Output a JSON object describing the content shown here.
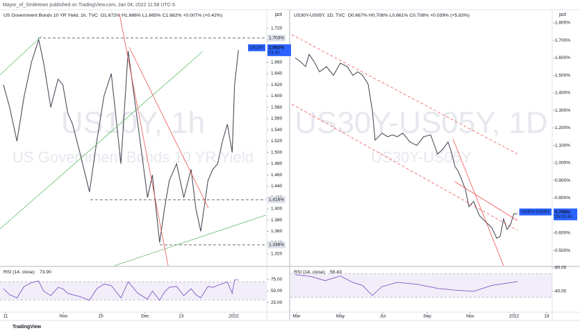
{
  "header": "Mayor_of_Smiletown published on TradingView.com, Jan 04, 2022 11:58 UTC-5",
  "footer": "TradingView",
  "chart_data": [
    {
      "type": "line",
      "title": "US Government Bonds 10 YR Yield, 1h, TVC",
      "ohlc": "O1.672% H1.686% L1.665% C1.682% +0.007% (+0.42%)",
      "watermark": [
        "US10Y, 1h",
        "US Government Bonds 10 YR Yield"
      ],
      "axis_unit": "pct",
      "x": [
        1.4,
        4,
        7,
        10,
        13,
        16,
        18,
        21,
        24,
        26,
        28,
        30,
        33,
        37,
        40,
        43,
        46,
        50,
        53,
        57,
        61,
        63,
        66,
        68,
        70,
        73,
        76,
        79,
        81,
        83,
        86,
        88,
        90,
        92,
        94,
        96,
        97,
        98.6
      ],
      "series": [
        {
          "name": "US10Y",
          "color": "#4a4e5a",
          "values": [
            1.62,
            1.58,
            1.52,
            1.6,
            1.66,
            1.7,
            1.66,
            1.58,
            1.63,
            1.62,
            1.57,
            1.55,
            1.5,
            1.43,
            1.52,
            1.6,
            1.64,
            1.48,
            1.68,
            1.55,
            1.42,
            1.46,
            1.34,
            1.4,
            1.45,
            1.48,
            1.42,
            1.47,
            1.4,
            1.36,
            1.45,
            1.47,
            1.48,
            1.52,
            1.55,
            1.5,
            1.62,
            1.682
          ]
        }
      ],
      "last_price": {
        "value": 1.682,
        "label": "1.682%"
      },
      "countdown": "01:41",
      "levels": [
        {
          "value": 1.703,
          "label": "1.703%"
        },
        {
          "value": 1.416,
          "label": "1.416%"
        },
        {
          "value": 1.336,
          "label": "1.336%"
        }
      ],
      "xlim": [
        0,
        110
      ],
      "ylim": [
        1.299,
        1.752
      ],
      "xticks": [
        {
          "value": 2.3,
          "label": "11"
        },
        {
          "value": 26.3,
          "label": "Nov"
        },
        {
          "value": 41.7,
          "label": "15"
        },
        {
          "value": 60,
          "label": "Dec"
        },
        {
          "value": 74.9,
          "label": "13"
        },
        {
          "value": 96.6,
          "label": "2022"
        }
      ],
      "yticks": [
        {
          "value": 1.32,
          "label": "1.320"
        },
        {
          "value": 1.34,
          "label": "1.340"
        },
        {
          "value": 1.36,
          "label": "1.360"
        },
        {
          "value": 1.38,
          "label": "1.380"
        },
        {
          "value": 1.4,
          "label": "1.400"
        },
        {
          "value": 1.42,
          "label": "1.420"
        },
        {
          "value": 1.44,
          "label": "1.440"
        },
        {
          "value": 1.46,
          "label": "1.460"
        },
        {
          "value": 1.48,
          "label": "1.480"
        },
        {
          "value": 1.5,
          "label": "1.500"
        },
        {
          "value": 1.52,
          "label": "1.520"
        },
        {
          "value": 1.54,
          "label": "1.540"
        },
        {
          "value": 1.56,
          "label": "1.560"
        },
        {
          "value": 1.58,
          "label": "1.580"
        },
        {
          "value": 1.6,
          "label": "1.600"
        },
        {
          "value": 1.62,
          "label": "1.620"
        },
        {
          "value": 1.64,
          "label": "1.640"
        },
        {
          "value": 1.66,
          "label": "1.660"
        },
        {
          "value": 1.68,
          "label": "1.680"
        },
        {
          "value": 1.7,
          "label": "1.700"
        },
        {
          "value": 1.72,
          "label": "1.720"
        }
      ]
    },
    {
      "type": "line",
      "title": "RSI (14, close)",
      "last_value": {
        "value": 73.9,
        "label": "73.90"
      },
      "x": [
        1.4,
        4,
        7,
        10,
        13,
        16,
        18,
        21,
        24,
        26,
        28,
        30,
        33,
        37,
        40,
        43,
        46,
        50,
        53,
        57,
        61,
        63,
        66,
        68,
        70,
        73,
        76,
        79,
        81,
        83,
        86,
        88,
        90,
        92,
        94,
        96,
        97,
        98.6
      ],
      "series": [
        {
          "name": "RSI",
          "color": "#7e57c2",
          "values": [
            55,
            42,
            35,
            60,
            68,
            72,
            50,
            40,
            58,
            55,
            45,
            42,
            38,
            30,
            55,
            65,
            62,
            35,
            70,
            45,
            32,
            50,
            30,
            48,
            58,
            60,
            40,
            55,
            42,
            35,
            60,
            58,
            62,
            66,
            70,
            45,
            74,
            73.9
          ]
        }
      ],
      "band": [
        30,
        70
      ],
      "xlim": [
        0,
        110
      ],
      "ylim": [
        4,
        102
      ],
      "yticks": [
        {
          "value": 75,
          "label": "75.00"
        },
        {
          "value": 50,
          "label": "50.00"
        },
        {
          "value": 25,
          "label": "25.00"
        }
      ]
    },
    {
      "type": "line",
      "title": "US30Y-US05Y, 1D, TVC",
      "ohlc": "O0.667% H0.708% L0.661% C0.708% +0.039% (+5.83%)",
      "watermark": [
        "US30Y-US05Y, 1D",
        "US30Y-US05Y"
      ],
      "axis_unit": "pct",
      "x": [
        3.5,
        7,
        11,
        13.5,
        17,
        21,
        26,
        31,
        36,
        41,
        45,
        48.5,
        52,
        56,
        59,
        61,
        66,
        70,
        73.5,
        77,
        81,
        86,
        91,
        96,
        101,
        106,
        110,
        113.5,
        116,
        118.5,
        121,
        123.5,
        126,
        128.5,
        132,
        136,
        141,
        145,
        148.5,
        151,
        153.5,
        156,
        158.5,
        161,
        163.5
      ],
      "series": [
        {
          "name": "US30Y-US05Y",
          "color": "#4a4e5a",
          "values": [
            1.6,
            1.58,
            1.55,
            1.62,
            1.58,
            1.52,
            1.55,
            1.5,
            1.57,
            1.55,
            1.5,
            1.52,
            1.5,
            1.45,
            1.3,
            1.13,
            1.17,
            1.15,
            1.16,
            1.15,
            1.17,
            1.12,
            1.1,
            1.15,
            1.16,
            1.05,
            1.08,
            1.12,
            1.06,
            0.98,
            0.95,
            0.9,
            0.85,
            0.75,
            0.78,
            0.7,
            0.66,
            0.63,
            0.57,
            0.58,
            0.68,
            0.62,
            0.65,
            0.71,
            0.708
          ]
        }
      ],
      "last_price": {
        "value": 0.708,
        "label": "0.708%"
      },
      "countdown": "05:01:41",
      "xlim": [
        0,
        188.5
      ],
      "ylim": [
        0.413,
        1.871
      ],
      "xticks": [
        {
          "value": 4.5,
          "label": "Mar"
        },
        {
          "value": 36,
          "label": "May"
        },
        {
          "value": 66.5,
          "label": "Jul"
        },
        {
          "value": 98.5,
          "label": "Sep"
        },
        {
          "value": 129.5,
          "label": "Nov"
        },
        {
          "value": 161,
          "label": "2022"
        },
        {
          "value": 184.5,
          "label": "14"
        }
      ],
      "yticks": [
        {
          "value": 0.5,
          "label": "0.500%"
        },
        {
          "value": 0.6,
          "label": "0.600%"
        },
        {
          "value": 0.7,
          "label": "0.700%"
        },
        {
          "value": 0.8,
          "label": "0.800%"
        },
        {
          "value": 0.9,
          "label": "0.900%"
        },
        {
          "value": 1.0,
          "label": "1.000%"
        },
        {
          "value": 1.1,
          "label": "1.100%"
        },
        {
          "value": 1.2,
          "label": "1.200%"
        },
        {
          "value": 1.3,
          "label": "1.300%"
        },
        {
          "value": 1.4,
          "label": "1.400%"
        },
        {
          "value": 1.5,
          "label": "1.500%"
        },
        {
          "value": 1.6,
          "label": "1.600%"
        },
        {
          "value": 1.7,
          "label": "1.700%"
        },
        {
          "value": 1.8,
          "label": "1.800%"
        }
      ]
    },
    {
      "type": "line",
      "title": "RSI (14, close)",
      "last_value": {
        "value": 56.43,
        "label": "56.43"
      },
      "x": [
        3.5,
        15,
        25,
        36,
        45,
        52,
        59,
        66,
        77,
        91,
        106,
        118.5,
        132,
        145,
        163.5
      ],
      "series": [
        {
          "name": "RSI",
          "color": "#7e57c2",
          "values": [
            68,
            65,
            58,
            66,
            55,
            50,
            33,
            48,
            55,
            52,
            45,
            42,
            40,
            50,
            56.43
          ]
        }
      ],
      "band": [
        30,
        70
      ],
      "xlim": [
        0,
        188.5
      ],
      "ylim": [
        4.7,
        81
      ],
      "yticks": [
        {
          "value": 80,
          "label": "80.00"
        },
        {
          "value": 40,
          "label": "40.00"
        }
      ]
    }
  ]
}
